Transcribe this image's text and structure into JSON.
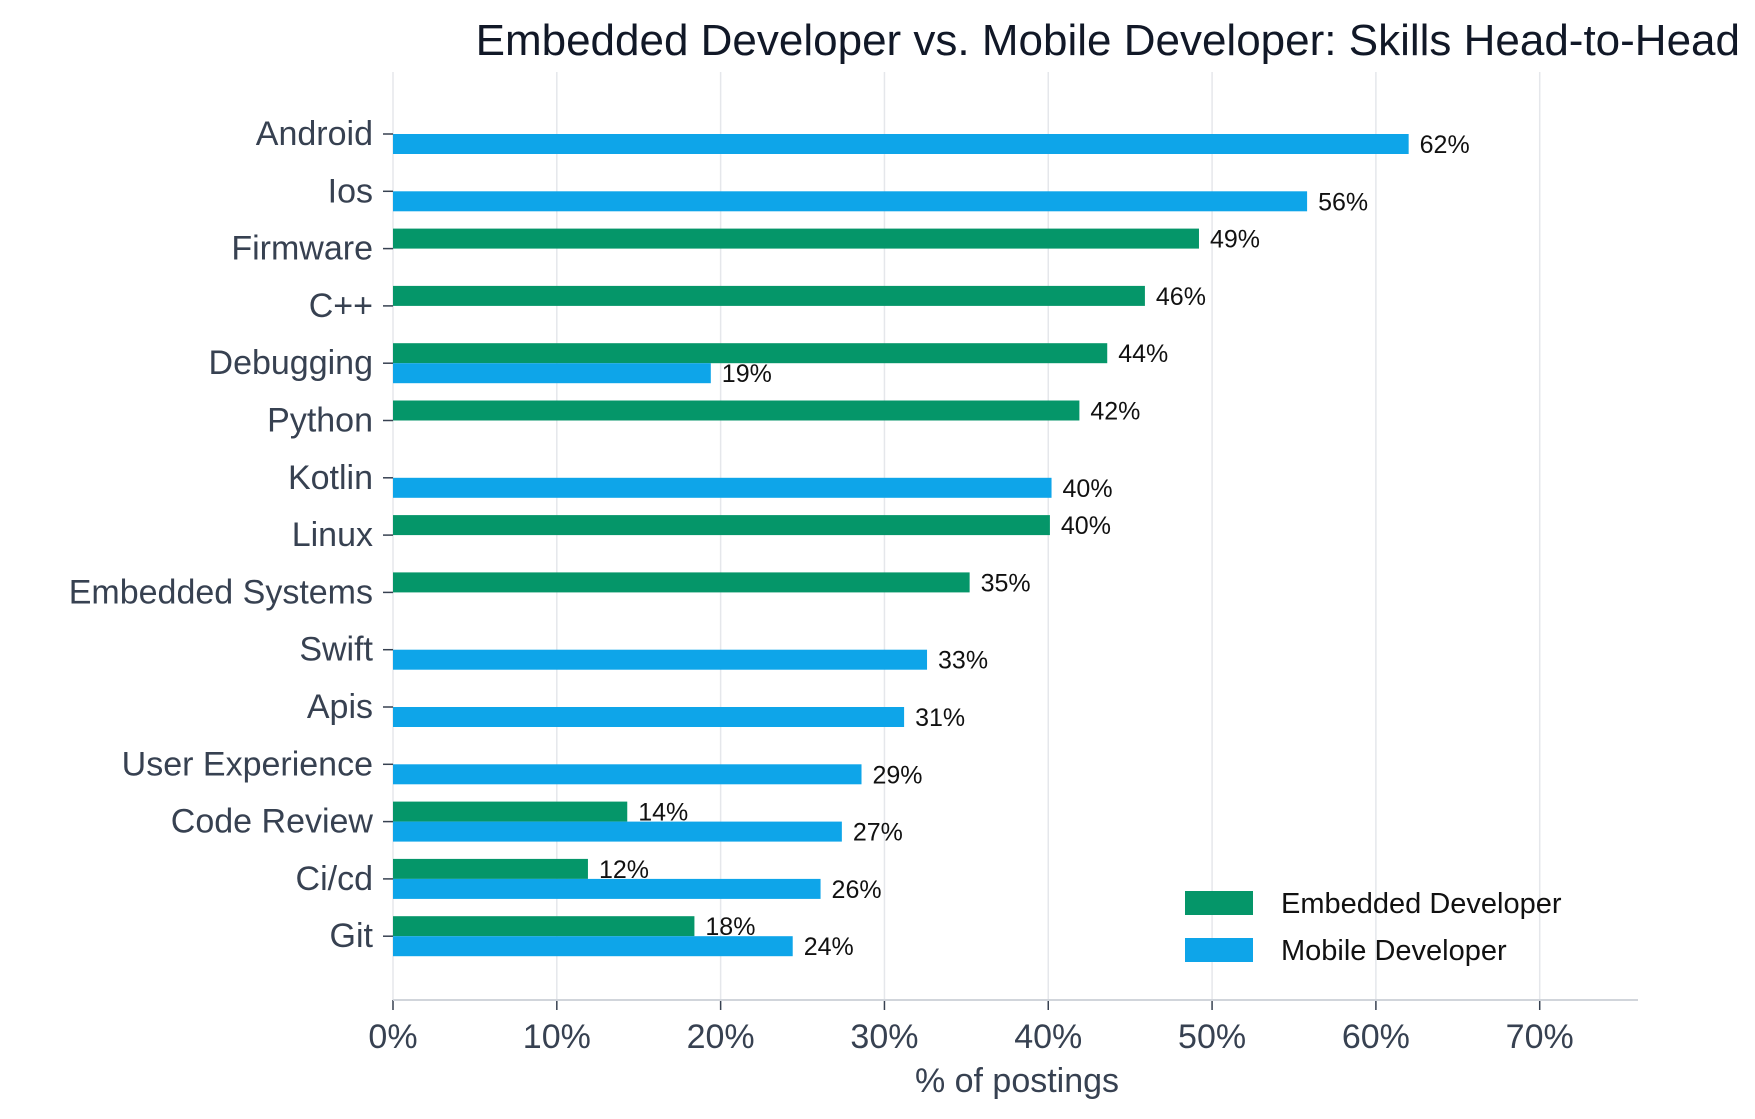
{
  "chart_data": {
    "type": "bar",
    "orientation": "horizontal",
    "title": "Embedded Developer vs. Mobile Developer: Skills Head-to-Head",
    "xlabel": "% of postings",
    "ylabel": "",
    "xlim": [
      0,
      76
    ],
    "xticks": [
      0,
      10,
      20,
      30,
      40,
      50,
      60,
      70
    ],
    "xtick_labels": [
      "0%",
      "10%",
      "20%",
      "30%",
      "40%",
      "50%",
      "60%",
      "70%"
    ],
    "grid": "vertical",
    "legend_position": "bottom-right",
    "categories": [
      "Android",
      "Ios",
      "Firmware",
      "C++",
      "Debugging",
      "Python",
      "Kotlin",
      "Linux",
      "Embedded Systems",
      "Swift",
      "Apis",
      "User Experience",
      "Code Review",
      "Ci/cd",
      "Git"
    ],
    "series": [
      {
        "name": "Embedded Developer",
        "color": "#059669",
        "values": [
          null,
          null,
          49.2,
          45.9,
          43.6,
          41.9,
          null,
          40.1,
          35.2,
          null,
          null,
          null,
          14.3,
          11.9,
          18.4
        ],
        "labels": [
          null,
          null,
          "49%",
          "46%",
          "44%",
          "42%",
          null,
          "40%",
          "35%",
          null,
          null,
          null,
          "14%",
          "12%",
          "18%"
        ]
      },
      {
        "name": "Mobile Developer",
        "color": "#0ea5e9",
        "values": [
          62.0,
          55.8,
          null,
          null,
          19.4,
          null,
          40.2,
          null,
          null,
          32.6,
          31.2,
          28.6,
          27.4,
          26.1,
          24.4
        ],
        "labels": [
          "62%",
          "56%",
          null,
          null,
          "19%",
          null,
          "40%",
          null,
          null,
          "33%",
          "31%",
          "29%",
          "27%",
          "26%",
          "24%"
        ]
      }
    ]
  }
}
